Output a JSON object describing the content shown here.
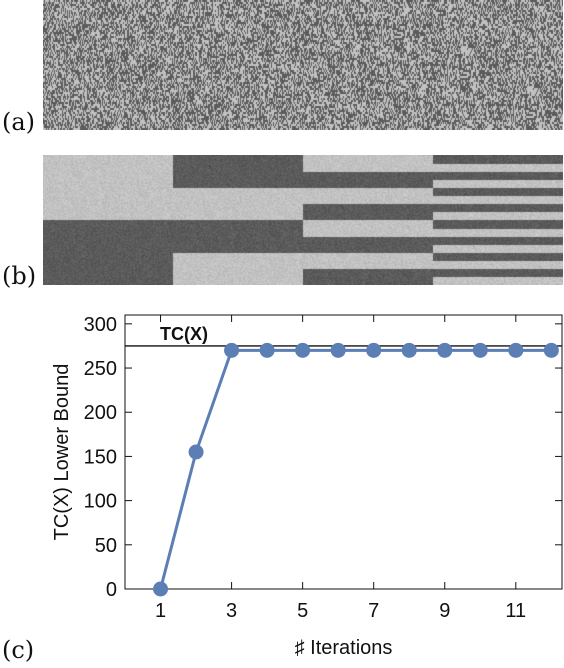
{
  "panels": {
    "a": {
      "label": "(a)"
    },
    "b": {
      "label": "(b)"
    },
    "c": {
      "label": "(c)"
    }
  },
  "colors": {
    "dark": "#5b5b5b",
    "light": "#c2c2c2",
    "series": "#5b7fb5",
    "reference": "#111111"
  },
  "chart_data": {
    "type": "line",
    "title": "",
    "xlabel": "♯ Iterations",
    "ylabel": "TC(X) Lower Bound",
    "xlim": [
      0,
      12.3
    ],
    "ylim": [
      0,
      310
    ],
    "x_ticks": [
      1,
      3,
      5,
      7,
      9,
      11
    ],
    "y_ticks": [
      0,
      50,
      100,
      150,
      200,
      250,
      300
    ],
    "series": [
      {
        "x": [
          1,
          2,
          3,
          4,
          5,
          6,
          7,
          8,
          9,
          10,
          11,
          12
        ],
        "values": [
          0,
          155,
          270,
          270,
          270,
          270,
          270,
          270,
          270,
          270,
          270,
          270
        ]
      }
    ],
    "reference_line": {
      "label": "TC(X)",
      "value": 275
    },
    "grid": false
  }
}
